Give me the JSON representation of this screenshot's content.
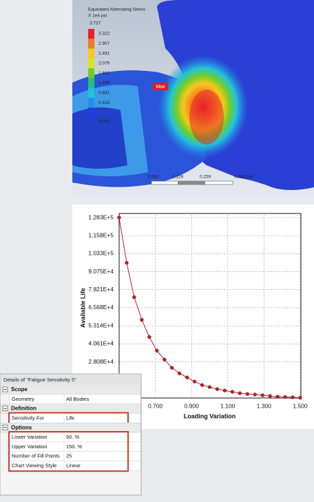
{
  "stress_plot": {
    "title": "Equivalent Alternating Stress",
    "units": "X 1e4 psi",
    "max_value": "3.737",
    "legend_values": [
      "3.322",
      "2.907",
      "2.491",
      "2.076",
      "1.661",
      "1.246",
      "0.831",
      "0.415",
      "0.000"
    ],
    "legend_colors": [
      "#e8202a",
      "#f47a1e",
      "#f6c81c",
      "#d9e51e",
      "#6fcd2a",
      "#27c07a",
      "#23c4d8",
      "#1f8ff0",
      "#1c3fe6"
    ],
    "max_label": "Max",
    "scale_labels": [
      "0.000",
      "0.129",
      "0.259",
      "0.388 (in)"
    ]
  },
  "chart_data": {
    "type": "line",
    "x_label": "Loading Variation",
    "y_label": "Available Life",
    "color": "#c0202a",
    "grid": true,
    "x": [
      0.5,
      0.5417,
      0.5833,
      0.625,
      0.6667,
      0.7083,
      0.75,
      0.7917,
      0.8333,
      0.875,
      0.9167,
      0.9583,
      1.0,
      1.0417,
      1.0833,
      1.125,
      1.1667,
      1.2083,
      1.25,
      1.2917,
      1.3333,
      1.375,
      1.4167,
      1.4583,
      1.5
    ],
    "values": [
      128300,
      96900,
      73000,
      57300,
      45400,
      35900,
      29700,
      24000,
      20100,
      17300,
      14400,
      12000,
      10600,
      9200,
      8200,
      7300,
      6300,
      5800,
      5400,
      4900,
      4400,
      3900,
      3700,
      3500,
      3200
    ],
    "xlim": [
      0.5,
      1.5
    ],
    "xticks": [
      {
        "value": 0.7,
        "label": "0.700"
      },
      {
        "value": 0.9,
        "label": "0.900"
      },
      {
        "value": 1.1,
        "label": "1.100"
      },
      {
        "value": 1.3,
        "label": "1.300"
      },
      {
        "value": 1.5,
        "label": "1.500"
      }
    ],
    "ylim": [
      3000,
      128300
    ],
    "yticks": [
      {
        "value": 128300,
        "label": "1.283E+5"
      },
      {
        "value": 115800,
        "label": "1.158E+5"
      },
      {
        "value": 103300,
        "label": "1.033E+5"
      },
      {
        "value": 90750,
        "label": "9.075E+4"
      },
      {
        "value": 78210,
        "label": "7.821E+4"
      },
      {
        "value": 65680,
        "label": "6.568E+4"
      },
      {
        "value": 53140,
        "label": "5.314E+4"
      },
      {
        "value": 40610,
        "label": "4.061E+4"
      },
      {
        "value": 28080,
        "label": "2.808E+4"
      }
    ]
  },
  "details": {
    "title": "Details of \"Fatigue Sensitivity 5\"",
    "sections": [
      {
        "name": "Scope",
        "rows": [
          [
            "Geometry",
            "All Bodies"
          ]
        ]
      },
      {
        "name": "Definition",
        "rows": [
          [
            "Sensitivity For",
            "Life"
          ]
        ]
      },
      {
        "name": "Options",
        "rows": [
          [
            "Lower Variation",
            "50. %"
          ],
          [
            "Upper Variation",
            "150. %"
          ],
          [
            "Number of Fill Points",
            "25"
          ],
          [
            "Chart Viewing Style",
            "Linear"
          ]
        ]
      }
    ]
  }
}
